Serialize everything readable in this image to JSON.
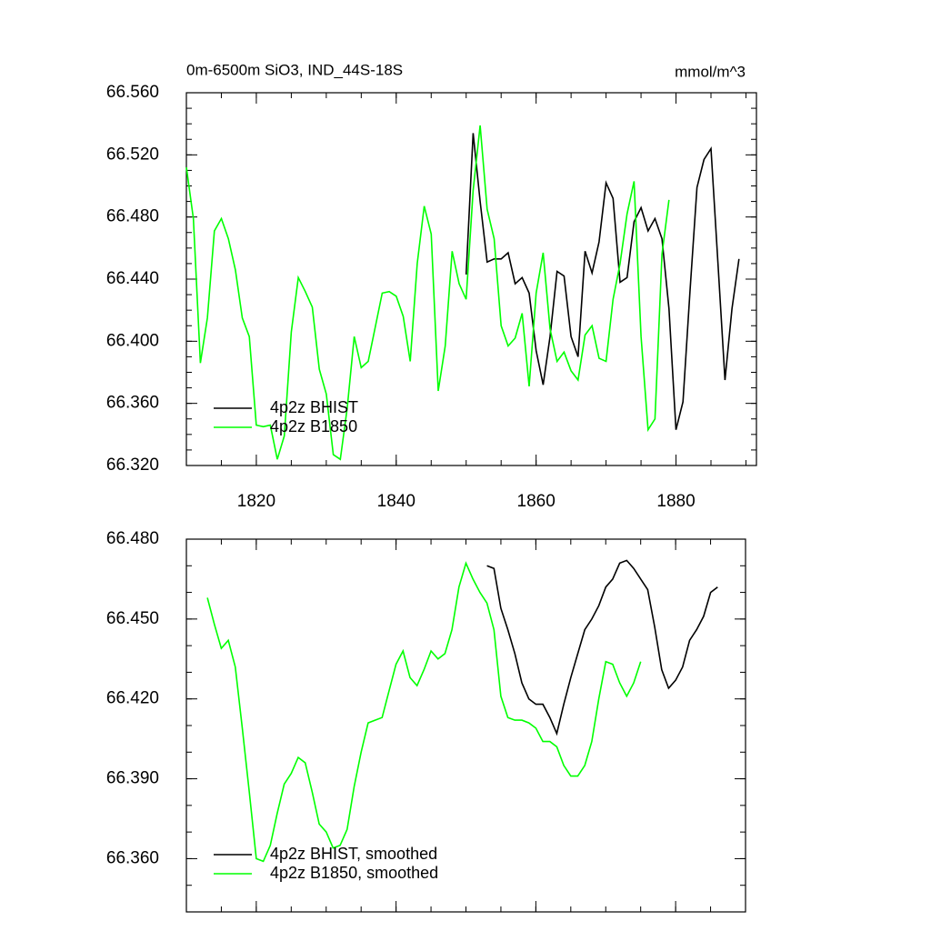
{
  "chart_data": [
    {
      "type": "line",
      "title": "0m-6500m SiO3, IND_44S-18S",
      "units": "mmol/m^3",
      "x": [
        1810,
        1811,
        1812,
        1813,
        1814,
        1815,
        1816,
        1817,
        1818,
        1819,
        1820,
        1821,
        1822,
        1823,
        1824,
        1825,
        1826,
        1827,
        1828,
        1829,
        1830,
        1831,
        1832,
        1833,
        1834,
        1835,
        1836,
        1837,
        1838,
        1839,
        1840,
        1841,
        1842,
        1843,
        1844,
        1845,
        1846,
        1847,
        1848,
        1849,
        1850,
        1851,
        1852,
        1853,
        1854,
        1855,
        1856,
        1857,
        1858,
        1859,
        1860,
        1861,
        1862,
        1863,
        1864,
        1865,
        1866,
        1867,
        1868,
        1869,
        1870,
        1871,
        1872,
        1873,
        1874,
        1875,
        1876,
        1877,
        1878,
        1879,
        1880,
        1881,
        1882,
        1883,
        1884,
        1885,
        1886,
        1887,
        1888,
        1889
      ],
      "series": [
        {
          "name": "4p2z BHIST",
          "color": "#000000",
          "values": [
            null,
            null,
            null,
            null,
            null,
            null,
            null,
            null,
            null,
            null,
            null,
            null,
            null,
            null,
            null,
            null,
            null,
            null,
            null,
            null,
            null,
            null,
            null,
            null,
            null,
            null,
            null,
            null,
            null,
            null,
            null,
            null,
            null,
            null,
            null,
            null,
            null,
            null,
            null,
            null,
            66.443,
            66.534,
            66.49,
            66.451,
            66.453,
            66.453,
            66.457,
            66.437,
            66.441,
            66.431,
            66.394,
            66.372,
            66.403,
            66.445,
            66.442,
            66.403,
            66.39,
            66.458,
            66.444,
            66.464,
            66.502,
            66.492,
            66.438,
            66.441,
            66.477,
            66.486,
            66.471,
            66.479,
            66.466,
            66.421,
            66.343,
            66.361,
            66.432,
            66.499,
            66.517,
            66.524,
            66.45,
            66.375,
            66.421,
            66.453
          ]
        },
        {
          "name": "4p2z B1850",
          "color": "#00ff00",
          "values": [
            66.512,
            66.479,
            66.386,
            66.415,
            66.471,
            66.479,
            66.466,
            66.446,
            66.415,
            66.403,
            66.346,
            66.345,
            66.346,
            66.324,
            66.339,
            66.406,
            66.441,
            66.432,
            66.422,
            66.382,
            66.366,
            66.327,
            66.324,
            66.357,
            66.403,
            66.383,
            66.387,
            66.409,
            66.431,
            66.432,
            66.429,
            66.416,
            66.387,
            66.45,
            66.487,
            66.469,
            66.368,
            66.397,
            66.458,
            66.437,
            66.427,
            66.497,
            66.539,
            66.485,
            66.466,
            66.41,
            66.397,
            66.402,
            66.418,
            66.371,
            66.431,
            66.457,
            66.408,
            66.387,
            66.393,
            66.381,
            66.375,
            66.404,
            66.41,
            66.389,
            66.387,
            66.427,
            66.45,
            66.482,
            66.503,
            66.403,
            66.343,
            66.35,
            66.456,
            66.491,
            null,
            null,
            null,
            null,
            null,
            null,
            null,
            null,
            null,
            null
          ]
        }
      ],
      "xlim": [
        1810,
        1891.5
      ],
      "xticks": [
        1820,
        1840,
        1860,
        1880
      ],
      "ylim": [
        66.32,
        66.56
      ],
      "yticks": [
        {
          "value": 66.32,
          "label": "66.320"
        },
        {
          "value": 66.36,
          "label": "66.360"
        },
        {
          "value": 66.4,
          "label": "66.400"
        },
        {
          "value": 66.44,
          "label": "66.440"
        },
        {
          "value": 66.48,
          "label": "66.480"
        },
        {
          "value": 66.52,
          "label": "66.520"
        },
        {
          "value": 66.56,
          "label": "66.560"
        }
      ],
      "legend": "lower left"
    },
    {
      "type": "line",
      "x": [
        1813,
        1814,
        1815,
        1816,
        1817,
        1818,
        1819,
        1820,
        1821,
        1822,
        1823,
        1824,
        1825,
        1826,
        1827,
        1828,
        1829,
        1830,
        1831,
        1832,
        1833,
        1834,
        1835,
        1836,
        1837,
        1838,
        1839,
        1840,
        1841,
        1842,
        1843,
        1844,
        1845,
        1846,
        1847,
        1848,
        1849,
        1850,
        1851,
        1852,
        1853,
        1854,
        1855,
        1856,
        1857,
        1858,
        1859,
        1860,
        1861,
        1862,
        1863,
        1864,
        1865,
        1866,
        1867,
        1868,
        1869,
        1870,
        1871,
        1872,
        1873,
        1874,
        1875,
        1876,
        1877,
        1878,
        1879,
        1880,
        1881,
        1882,
        1883,
        1884,
        1885,
        1886
      ],
      "series": [
        {
          "name": "4p2z BHIST, smoothed",
          "color": "#000000",
          "values": [
            null,
            null,
            null,
            null,
            null,
            null,
            null,
            null,
            null,
            null,
            null,
            null,
            null,
            null,
            null,
            null,
            null,
            null,
            null,
            null,
            null,
            null,
            null,
            null,
            null,
            null,
            null,
            null,
            null,
            null,
            null,
            null,
            null,
            null,
            null,
            null,
            null,
            null,
            null,
            null,
            66.47,
            66.469,
            66.454,
            66.446,
            66.437,
            66.426,
            66.42,
            66.418,
            66.418,
            66.413,
            66.407,
            66.418,
            66.428,
            66.437,
            66.446,
            66.45,
            66.455,
            66.462,
            66.465,
            66.471,
            66.472,
            66.469,
            66.465,
            66.461,
            66.447,
            66.431,
            66.424,
            66.427,
            66.432,
            66.442,
            66.446,
            66.451,
            66.46,
            66.462
          ]
        },
        {
          "name": "4p2z B1850, smoothed",
          "color": "#00ff00",
          "values": [
            66.458,
            66.448,
            66.439,
            66.442,
            66.432,
            66.409,
            66.385,
            66.36,
            66.359,
            66.365,
            66.377,
            66.388,
            66.392,
            66.398,
            66.396,
            66.385,
            66.373,
            66.37,
            66.364,
            66.365,
            66.371,
            66.387,
            66.4,
            66.411,
            66.412,
            66.413,
            66.423,
            66.433,
            66.438,
            66.428,
            66.425,
            66.431,
            66.438,
            66.435,
            66.437,
            66.446,
            66.462,
            66.471,
            66.465,
            66.46,
            66.456,
            66.446,
            66.421,
            66.413,
            66.412,
            66.412,
            66.411,
            66.409,
            66.404,
            66.404,
            66.402,
            66.395,
            66.391,
            66.391,
            66.395,
            66.404,
            66.42,
            66.434,
            66.433,
            66.426,
            66.421,
            66.426,
            66.434,
            null,
            null,
            null,
            null,
            null,
            null,
            null,
            null,
            null,
            null,
            null
          ]
        }
      ],
      "xlim": [
        1810,
        1890
      ],
      "xticks": [
        1820,
        1840,
        1860,
        1880
      ],
      "ylim": [
        66.34,
        66.48
      ],
      "yticks": [
        {
          "value": 66.36,
          "label": "66.360"
        },
        {
          "value": 66.39,
          "label": "66.390"
        },
        {
          "value": 66.42,
          "label": "66.420"
        },
        {
          "value": 66.45,
          "label": "66.450"
        },
        {
          "value": 66.48,
          "label": "66.480"
        }
      ],
      "legend": "lower left"
    }
  ]
}
